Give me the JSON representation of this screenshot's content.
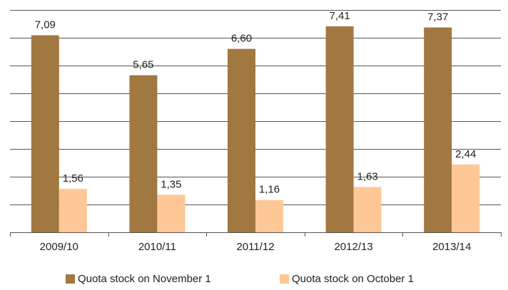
{
  "chart_data": {
    "type": "bar",
    "categories": [
      "2009/10",
      "2010/11",
      "2011/12",
      "2012/13",
      "2013/14"
    ],
    "series": [
      {
        "name": "Quota stock on November 1",
        "color": "#a07840",
        "values": [
          7.09,
          5.65,
          6.6,
          7.41,
          7.37
        ],
        "value_labels": [
          "7,09",
          "5,65",
          "6,60",
          "7,41",
          "7,37"
        ]
      },
      {
        "name": "Quota stock on October 1",
        "color": "#fdc896",
        "values": [
          1.56,
          1.35,
          1.16,
          1.63,
          2.44
        ],
        "value_labels": [
          "1,56",
          "1,35",
          "1,16",
          "1,63",
          "2,44"
        ]
      }
    ],
    "ylim": [
      0,
      8
    ],
    "yticks": [
      0,
      1,
      2,
      3,
      4,
      5,
      6,
      7,
      8
    ],
    "grid": true
  }
}
